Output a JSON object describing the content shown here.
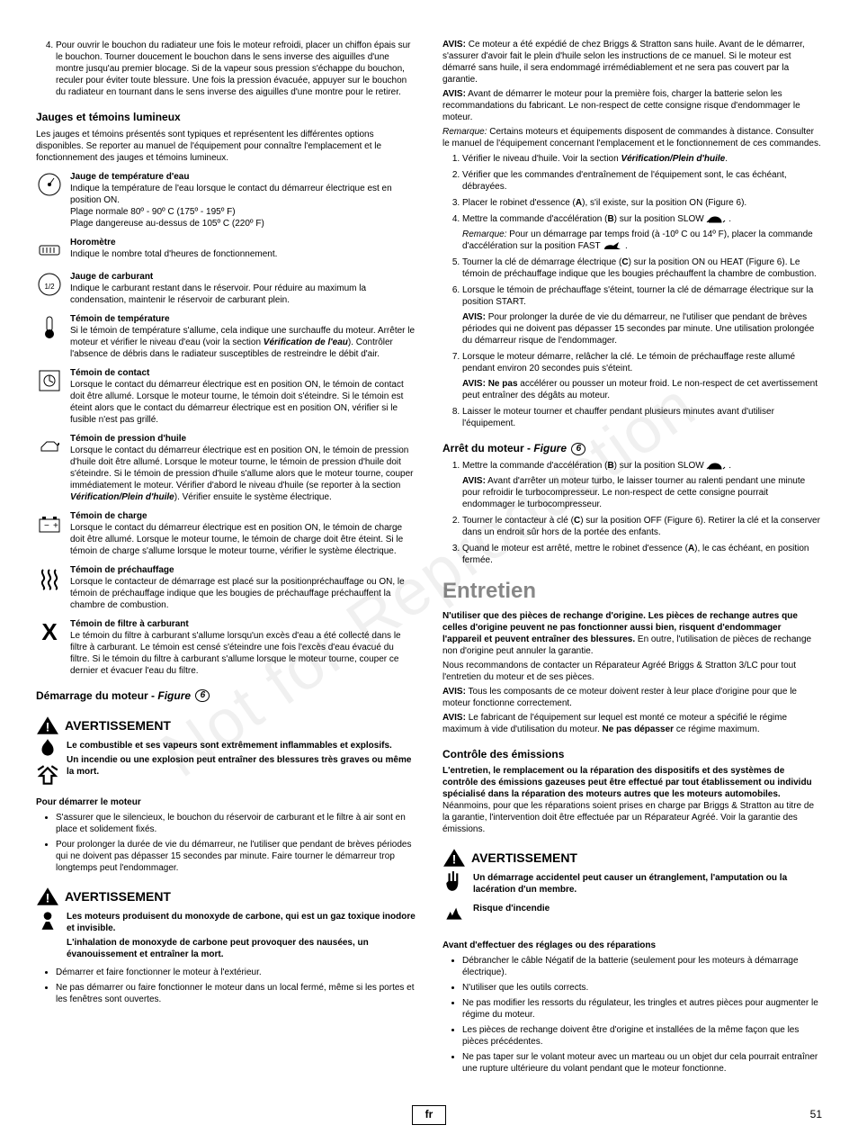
{
  "watermark": "Not for Reproduction",
  "left": {
    "item4": "Pour ouvrir le bouchon du radiateur une fois le moteur refroidi, placer un chiffon épais sur le bouchon. Tourner doucement le bouchon dans le sens inverse des aiguilles d'une montre jusqu'au premier blocage. Si de la vapeur sous pression s'échappe du bouchon, reculer pour éviter toute blessure. Une fois la pression évacuée, appuyer sur le bouchon du radiateur en tournant dans le sens inverse des aiguilles d'une montre pour le retirer.",
    "gauges_heading": "Jauges et témoins lumineux",
    "gauges_intro": "Les jauges et témoins présentés sont typiques et représentent les différentes options disponibles. Se reporter au manuel de l'équipement pour connaître l'emplacement et le fonctionnement des jauges et témoins lumineux.",
    "gauges": [
      {
        "icon": "temp-gauge-icon",
        "title": "Jauge de température d'eau",
        "body": "Indique la température de l'eau lorsque le contact du démarreur électrique est en position ON.\nPlage normale 80º - 90º C (175º - 195º F)\nPlage dangereuse au-dessus de 105º C (220º F)"
      },
      {
        "icon": "hourmeter-icon",
        "title": "Horomètre",
        "body": "Indique le nombre total d'heures de fonctionnement."
      },
      {
        "icon": "fuel-gauge-icon",
        "title": "Jauge de carburant",
        "body": "Indique le carburant restant dans le réservoir. Pour réduire au maximum la condensation, maintenir le réservoir de carburant plein."
      },
      {
        "icon": "temp-light-icon",
        "title": "Témoin de température",
        "body": "Si le témoin de température s'allume, cela indique une surchauffe du moteur. Arrêter le moteur et vérifier le niveau d'eau (voir la section Vérification de l'eau). Contrôler l'absence de débris dans le radiateur susceptibles de restreindre le débit d'air.",
        "bolditalic": "Vérification de l'eau"
      },
      {
        "icon": "contact-light-icon",
        "title": "Témoin de contact",
        "body": "Lorsque le contact du démarreur électrique est en position ON, le témoin de contact doit être allumé. Lorsque le moteur tourne, le témoin doit s'éteindre. Si le témoin est éteint alors que le contact du démarreur électrique est en position ON, vérifier si le fusible n'est pas grillé."
      },
      {
        "icon": "oil-light-icon",
        "title": "Témoin de pression d'huile",
        "body": "Lorsque le contact du démarreur électrique est en position ON, le témoin de pression d'huile doit être allumé. Lorsque le moteur tourne, le témoin de pression d'huile doit s'éteindre. Si le témoin de pression d'huile s'allume alors que le moteur tourne, couper immédiatement le moteur. Vérifier d'abord le niveau d'huile (se reporter à la section Vérification/Plein d'huile). Vérifier ensuite le système électrique.",
        "bolditalic": "Vérification/Plein d'huile"
      },
      {
        "icon": "charge-light-icon",
        "title": "Témoin de charge",
        "body": "Lorsque le contact du démarreur électrique est en position ON, le témoin de charge doit être allumé. Lorsque le moteur tourne, le témoin de charge doit être éteint. Si le témoin de charge s'allume lorsque le moteur tourne, vérifier le système électrique."
      },
      {
        "icon": "preheat-icon",
        "title": "Témoin de préchauffage",
        "body": "Lorsque le contacteur de démarrage est placé sur la positionpréchauffage ou ON, le témoin de préchauffage indique que les bougies de préchauffage préchauffent la chambre de combustion."
      },
      {
        "icon": "fuel-filter-icon",
        "title": "Témoin de filtre à carburant",
        "body": "Le témoin du filtre à carburant s'allume lorsqu'un excès d'eau a été collecté dans le filtre à carburant. Le témoin est censé s'éteindre une fois l'excès d'eau évacué du filtre. Si le témoin du filtre à carburant s'allume lorsque le moteur tourne, couper ce dernier et évacuer l'eau du filtre."
      }
    ],
    "start_heading": "Démarrage du moteur - ",
    "start_fig": "Figure",
    "start_fig_num": "6",
    "warn1": {
      "word": "AVERTISSEMENT",
      "line1": "Le combustible et ses vapeurs sont extrêmement inflammables et explosifs.",
      "line2": "Un incendie ou une explosion peut entraîner des blessures très graves ou même la mort."
    },
    "start_sub": "Pour démarrer le moteur",
    "start_bullets": [
      "S'assurer que le silencieux, le bouchon du réservoir de carburant et le filtre à air sont en place et solidement fixés.",
      "Pour prolonger la durée de vie du démarreur, ne l'utiliser que pendant de brèves périodes qui ne doivent pas dépasser 15 secondes par minute. Faire tourner le démarreur trop longtemps peut l'endommager."
    ],
    "warn2": {
      "word": "AVERTISSEMENT",
      "line1": "Les moteurs produisent du monoxyde de carbone, qui est un gaz toxique inodore et invisible.",
      "line2": "L'inhalation de monoxyde de carbone peut provoquer des nausées, un évanouissement et entraîner la mort."
    },
    "warn2_bullets": [
      "Démarrer et faire fonctionner le moteur à l'extérieur.",
      "Ne pas démarrer ou faire fonctionner le moteur dans un local fermé, même si les portes et les fenêtres sont ouvertes."
    ]
  },
  "right": {
    "avis1": {
      "label": "AVIS:",
      "text": " Ce moteur a été expédié de chez Briggs & Stratton sans huile. Avant de le démarrer, s'assurer d'avoir fait le plein d'huile selon les instructions de ce manuel. Si le moteur est démarré sans huile, il sera endommagé irrémédiablement et ne sera pas couvert par la garantie."
    },
    "avis2": {
      "label": "AVIS:",
      "text": " Avant de démarrer le moteur pour la première fois, charger la batterie selon les recommandations du fabricant. Le non-respect de cette consigne risque d'endommager le moteur."
    },
    "rem1": {
      "label": "Remarque:",
      "text": " Certains moteurs et équipements disposent de commandes à distance. Consulter le manuel de l'équipement concernant l'emplacement et le fonctionnement de ces commandes."
    },
    "steps": {
      "s1_pre": "Vérifier le niveau d'huile. Voir la section ",
      "s1_bold": "Vérification/Plein d'huile",
      "s1_post": ".",
      "s2": "Vérifier que les commandes d'entraînement de l'équipement sont, le cas échéant, débrayées.",
      "s3": "Placer le robinet d'essence (A), s'il existe, sur la position ON (Figure 6).",
      "s4_a": "Mettre la commande d'accélération (B) sur la position SLOW ",
      "s4_b": ".",
      "s4_rem_label": "Remarque:",
      "s4_rem": " Pour un démarrage par temps froid (à -10º C ou 14º F), placer la commande d'accélération sur la position FAST ",
      "s4_rem_post": ".",
      "s5": "Tourner la clé de démarrage électrique (C) sur la position ON ou HEAT (Figure 6). Le témoin de préchauffage indique que les bougies préchauffent la chambre de combustion.",
      "s6": "Lorsque le témoin de préchauffage s'éteint, tourner la clé de démarrage électrique sur la position START.",
      "s6_avis_label": "AVIS:",
      "s6_avis": " Pour prolonger la durée de vie du démarreur, ne l'utiliser que pendant de brèves périodes qui ne doivent pas dépasser 15 secondes par minute. Une utilisation prolongée du démarreur risque de l'endommager.",
      "s7": "Lorsque le moteur démarre, relâcher la clé. Le témoin de préchauffage reste allumé pendant environ 20 secondes puis s'éteint.",
      "s7_avis_label": "AVIS: Ne pas",
      "s7_avis": " accélérer ou pousser un moteur froid. Le non-respect de cet avertissement peut entraîner des dégâts au moteur.",
      "s8": "Laisser le moteur tourner et chauffer pendant plusieurs minutes avant d'utiliser l'équipement."
    },
    "stop_heading": "Arrêt du moteur - ",
    "stop_fig": "Figure",
    "stop_fig_num": "6",
    "stop_steps": {
      "s1_a": "Mettre la commande d'accélération (B) sur la position SLOW ",
      "s1_b": ".",
      "s1_avis_label": "AVIS:",
      "s1_avis": " Avant d'arrêter un moteur turbo, le laisser tourner au ralenti pendant une minute pour refroidir le turbocompresseur. Le non-respect de cette consigne pourrait endommager le turbocompresseur.",
      "s2": "Tourner le contacteur à clé (C) sur la position OFF (Figure 6). Retirer la clé et la conserver dans un endroit sûr hors de la portée des enfants.",
      "s3": "Quand le moteur est arrêté, mettre le robinet d'essence (A), le cas échéant, en position fermée."
    },
    "maint_h1": "Entretien",
    "maint_p1_bold": "N'utiliser que des pièces de rechange d'origine. Les pièces de rechange autres que celles d'origine peuvent ne pas fonctionner aussi bien, risquent d'endommager l'appareil et peuvent entraîner des blessures.",
    "maint_p1_rest": " En outre, l'utilisation de pièces de rechange non d'origine peut annuler la garantie.",
    "maint_p2": "Nous recommandons de contacter un Réparateur Agréé Briggs & Stratton 3/LC pour tout l'entretien du moteur et de ses pièces.",
    "maint_avis1_label": "AVIS:",
    "maint_avis1": " Tous les composants de ce moteur doivent rester à leur place d'origine pour que le moteur fonctionne correctement.",
    "maint_avis2_label": "AVIS:",
    "maint_avis2_a": " Le fabricant de l'équipement sur lequel est monté ce moteur a spécifié le régime maximum à vide d'utilisation du moteur. ",
    "maint_avis2_bold": "Ne pas dépasser",
    "maint_avis2_b": " ce régime maximum.",
    "emis_heading": "Contrôle des émissions",
    "emis_bold": "L'entretien, le remplacement ou la réparation des dispositifs et des systèmes de contrôle des émissions gazeuses peut être effectué par tout établissement ou individu spécialisé dans la réparation des moteurs autres que les moteurs automobiles.",
    "emis_rest": " Néanmoins, pour que les réparations soient prises en charge par Briggs & Stratton au titre de la garantie, l'intervention doit être effectuée par un Réparateur Agréé. Voir la garantie des émissions.",
    "warn3": {
      "word": "AVERTISSEMENT",
      "line1": "Un démarrage accidentel peut causer un étranglement, l'amputation ou la lacération d'un membre.",
      "line2": "Risque d'incendie"
    },
    "before_heading": "Avant d'effectuer des réglages ou des réparations",
    "before_bullets": [
      "Débrancher le câble Négatif de la batterie (seulement pour les moteurs à démarrage électrique).",
      "N'utiliser que les outils corrects.",
      "Ne pas modifier les ressorts du régulateur, les tringles et autres pièces pour augmenter le régime du moteur.",
      "Les pièces de rechange doivent être d'origine et installées de la même façon que les pièces précédentes.",
      "Ne pas taper sur le volant moteur avec un marteau ou un objet dur cela pourrait entraîner une rupture ultérieure du volant pendant que le moteur fonctionne."
    ]
  },
  "footer": {
    "lang": "fr",
    "page": "51"
  }
}
